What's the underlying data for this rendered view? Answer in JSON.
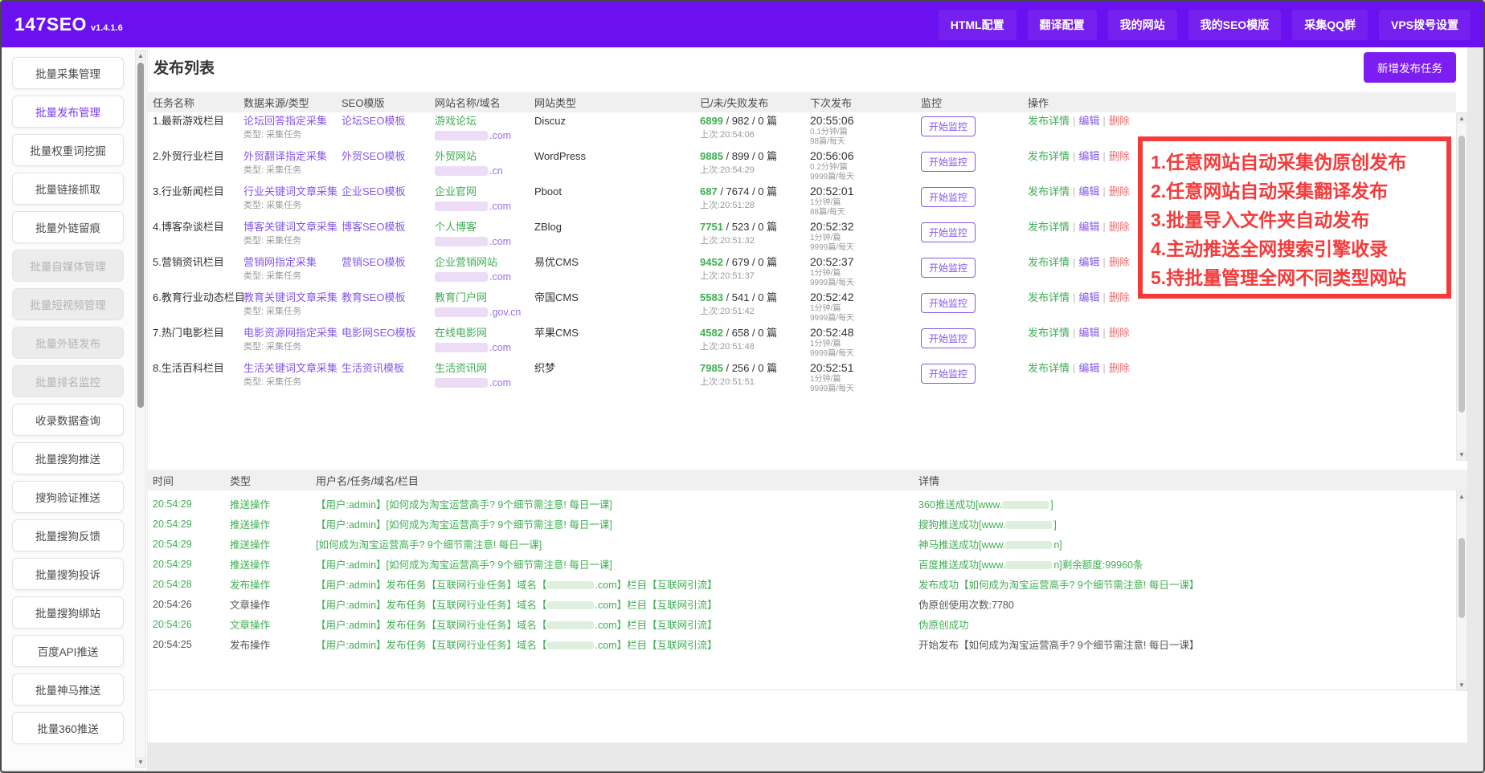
{
  "header": {
    "logo": "147SEO",
    "version": "v1.4.1.6",
    "nav": [
      "HTML配置",
      "翻译配置",
      "我的网站",
      "我的SEO模版",
      "采集QQ群",
      "VPS拨号设置"
    ]
  },
  "sidebar": {
    "items": [
      {
        "label": "批量采集管理",
        "state": "normal"
      },
      {
        "label": "批量发布管理",
        "state": "active"
      },
      {
        "label": "批量权重词挖掘",
        "state": "normal"
      },
      {
        "label": "批量链接抓取",
        "state": "normal"
      },
      {
        "label": "批量外链留痕",
        "state": "normal"
      },
      {
        "label": "批量自媒体管理",
        "state": "disabled"
      },
      {
        "label": "批量短视频管理",
        "state": "disabled"
      },
      {
        "label": "批量外链发布",
        "state": "disabled"
      },
      {
        "label": "批量排名监控",
        "state": "disabled"
      },
      {
        "label": "收录数据查询",
        "state": "normal"
      },
      {
        "label": "批量搜狗推送",
        "state": "normal"
      },
      {
        "label": "搜狗验证推送",
        "state": "normal"
      },
      {
        "label": "批量搜狗反馈",
        "state": "normal"
      },
      {
        "label": "批量搜狗投诉",
        "state": "normal"
      },
      {
        "label": "批量搜狗绑站",
        "state": "normal"
      },
      {
        "label": "百度API推送",
        "state": "normal"
      },
      {
        "label": "批量神马推送",
        "state": "normal"
      },
      {
        "label": "批量360推送",
        "state": "normal"
      }
    ]
  },
  "page": {
    "title": "发布列表",
    "new_task_button": "新增发布任务"
  },
  "publish_table": {
    "headers": [
      "任务名称",
      "数据来源/类型",
      "SEO模版",
      "网站名称/域名",
      "网站类型",
      "已/未/失败发布",
      "下次发布",
      "监控",
      "操作"
    ],
    "monitor_button": "开始监控",
    "ops": {
      "detail": "发布详情",
      "edit": "编辑",
      "delete": "删除",
      "sep": "|"
    },
    "rows": [
      {
        "task": "1.最新游戏栏目",
        "source": "论坛回答指定采集",
        "source_type": "类型: 采集任务",
        "template": "论坛SEO模板",
        "site_name": "游戏论坛",
        "domain_suffix": ".com",
        "site_type": "Discuz",
        "published": "6899",
        "rest": " / 982 / 0 篇",
        "last": "上次:20:54:06",
        "next": "20:55:06",
        "rate": "0.1分钟/篇",
        "daily": "98篇/每天"
      },
      {
        "task": "2.外贸行业栏目",
        "source": "外贸翻译指定采集",
        "source_type": "类型: 采集任务",
        "template": "外贸SEO模板",
        "site_name": "外贸网站",
        "domain_suffix": ".cn",
        "site_type": "WordPress",
        "published": "9885",
        "rest": " / 899 / 0 篇",
        "last": "上次:20:54:29",
        "next": "20:56:06",
        "rate": "0.2分钟/篇",
        "daily": "9999篇/每天"
      },
      {
        "task": "3.行业新闻栏目",
        "source": "行业关键词文章采集",
        "source_type": "类型: 采集任务",
        "template": "企业SEO模板",
        "site_name": "企业官网",
        "domain_suffix": ".com",
        "site_type": "Pboot",
        "published": "687",
        "rest": " / 7674 / 0 篇",
        "last": "上次:20:51:28",
        "next": "20:52:01",
        "rate": "1分钟/篇",
        "daily": "88篇/每天"
      },
      {
        "task": "4.博客杂谈栏目",
        "source": "博客关键词文章采集",
        "source_type": "类型: 采集任务",
        "template": "博客SEO模板",
        "site_name": "个人博客",
        "domain_suffix": ".com",
        "site_type": "ZBlog",
        "published": "7751",
        "rest": " / 523 / 0 篇",
        "last": "上次:20:51:32",
        "next": "20:52:32",
        "rate": "1分钟/篇",
        "daily": "9999篇/每天"
      },
      {
        "task": "5.营销资讯栏目",
        "source": "营销网指定采集",
        "source_type": "类型: 采集任务",
        "template": "营销SEO模板",
        "site_name": "企业营销网站",
        "domain_suffix": ".com",
        "site_type": "易优CMS",
        "published": "9452",
        "rest": " / 679 / 0 篇",
        "last": "上次:20:51:37",
        "next": "20:52:37",
        "rate": "1分钟/篇",
        "daily": "9999篇/每天"
      },
      {
        "task": "6.教育行业动态栏目",
        "source": "教育关键词文章采集",
        "source_type": "类型: 采集任务",
        "template": "教育SEO模板",
        "site_name": "教育门户网",
        "domain_suffix": ".gov.cn",
        "site_type": "帝国CMS",
        "published": "5583",
        "rest": " / 541 / 0 篇",
        "last": "上次:20:51:42",
        "next": "20:52:42",
        "rate": "1分钟/篇",
        "daily": "9999篇/每天"
      },
      {
        "task": "7.热门电影栏目",
        "source": "电影资源网指定采集",
        "source_type": "类型: 采集任务",
        "template": "电影网SEO模板",
        "site_name": "在线电影网",
        "domain_suffix": ".com",
        "site_type": "苹果CMS",
        "published": "4582",
        "rest": " / 658 / 0 篇",
        "last": "上次:20:51:48",
        "next": "20:52:48",
        "rate": "1分钟/篇",
        "daily": "9999篇/每天"
      },
      {
        "task": "8.生活百科栏目",
        "source": "生活关键词文章采集",
        "source_type": "类型: 采集任务",
        "template": "生活资讯模板",
        "site_name": "生活资讯网",
        "domain_suffix": ".com",
        "site_type": "织梦",
        "published": "7985",
        "rest": " / 256 / 0 篇",
        "last": "上次:20:51:51",
        "next": "20:52:51",
        "rate": "1分钟/篇",
        "daily": "9999篇/每天"
      }
    ]
  },
  "annotation": {
    "lines": [
      "1.任意网站自动采集伪原创发布",
      "2.任意网站自动采集翻译发布",
      "3.批量导入文件夹自动发布",
      "4.主动推送全网搜索引擎收录",
      "5.持批量管理全网不同类型网站"
    ]
  },
  "log_table": {
    "headers": [
      "时间",
      "类型",
      "用户名/任务/域名/栏目",
      "详情"
    ],
    "rows": [
      {
        "time": "20:54:29",
        "tone_time": "g",
        "type": "推送操作",
        "tone_type": "g",
        "content_pre": "【用户:admin】[如何成为淘宝运营高手? 9个细节需注意! 每日一课]",
        "content_blur": "off",
        "content_post": "",
        "detail_pre": "360推送成功[www.",
        "detail_blur": "on",
        "detail_post": "]",
        "tone_detail": "g"
      },
      {
        "time": "20:54:29",
        "tone_time": "g",
        "type": "推送操作",
        "tone_type": "g",
        "content_pre": "【用户:admin】[如何成为淘宝运营高手? 9个细节需注意! 每日一课]",
        "content_blur": "off",
        "content_post": "",
        "detail_pre": "搜狗推送成功[www.",
        "detail_blur": "on",
        "detail_post": "]",
        "tone_detail": "g"
      },
      {
        "time": "20:54:29",
        "tone_time": "g",
        "type": "推送操作",
        "tone_type": "g",
        "content_pre": "[如何成为淘宝运营高手? 9个细节需注意! 每日一课]",
        "content_blur": "off",
        "content_post": "",
        "detail_pre": "神马推送成功[www.",
        "detail_blur": "on",
        "detail_post": "n]",
        "tone_detail": "g"
      },
      {
        "time": "20:54:29",
        "tone_time": "g",
        "type": "推送操作",
        "tone_type": "g",
        "content_pre": "【用户:admin】[如何成为淘宝运营高手? 9个细节需注意! 每日一课]",
        "content_blur": "off",
        "content_post": "",
        "detail_pre": "百度推送成功[www.",
        "detail_blur": "on",
        "detail_post": "n]剩余额度:99960条",
        "tone_detail": "g"
      },
      {
        "time": "20:54:28",
        "tone_time": "g",
        "type": "发布操作",
        "tone_type": "g",
        "content_pre": "【用户:admin】发布任务【互联网行业任务】域名【",
        "content_blur": "on",
        "content_post": ".com】栏目【互联网引流】",
        "detail_pre": "发布成功【如何成为淘宝运营高手? 9个细节需注意! 每日一课】",
        "detail_blur": "off",
        "detail_post": "",
        "tone_detail": "g"
      },
      {
        "time": "20:54:26",
        "tone_time": "d",
        "type": "文章操作",
        "tone_type": "d",
        "content_pre": "【用户:admin】发布任务【互联网行业任务】域名【",
        "content_blur": "on",
        "content_post": ".com】栏目【互联网引流】",
        "detail_pre": "伪原创使用次数:7780",
        "detail_blur": "off",
        "detail_post": "",
        "tone_detail": "d"
      },
      {
        "time": "20:54:26",
        "tone_time": "g",
        "type": "文章操作",
        "tone_type": "g",
        "content_pre": "【用户:admin】发布任务【互联网行业任务】域名【",
        "content_blur": "on",
        "content_post": ".com】栏目【互联网引流】",
        "detail_pre": "伪原创成功",
        "detail_blur": "off",
        "detail_post": "",
        "tone_detail": "g"
      },
      {
        "time": "20:54:25",
        "tone_time": "d",
        "type": "发布操作",
        "tone_type": "d",
        "content_pre": "【用户:admin】发布任务【互联网行业任务】域名【",
        "content_blur": "on",
        "content_post": ".com】栏目【互联网引流】",
        "detail_pre": "开始发布【如何成为淘宝运营高手? 9个细节需注意! 每日一课】",
        "detail_blur": "off",
        "detail_post": "",
        "tone_detail": "d"
      }
    ]
  },
  "colors": {
    "accent_purple": "#6b10ee",
    "link_purple": "#8757e8",
    "green": "#3fae52",
    "annotation_red": "#f43b3b",
    "delete_red": "#f56c6c"
  }
}
